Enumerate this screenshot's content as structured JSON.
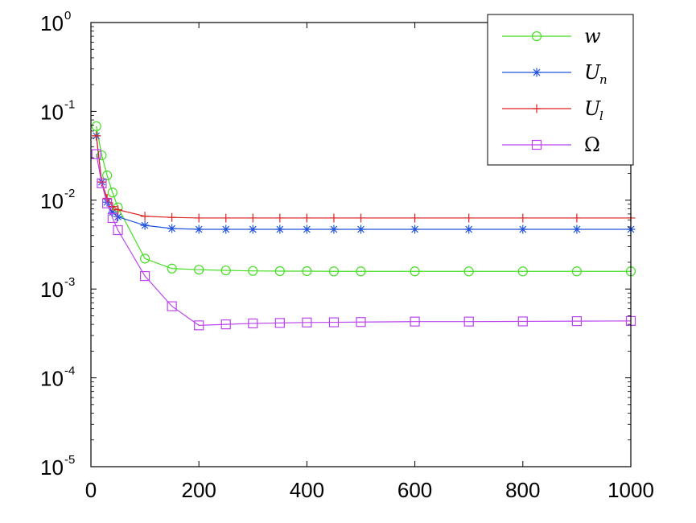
{
  "chart_data": {
    "type": "line",
    "x_scale": "linear",
    "y_scale": "log",
    "xlim": [
      0,
      1000
    ],
    "ylim": [
      1e-05,
      1
    ],
    "grid": false,
    "legend_position": "top-right",
    "x_ticks": [
      0,
      200,
      400,
      600,
      800,
      1000
    ],
    "x_tick_labels": [
      "0",
      "200",
      "400",
      "600",
      "800",
      "1000"
    ],
    "y_ticks": [
      1,
      0.1,
      0.01,
      0.001,
      0.0001,
      1e-05
    ],
    "y_tick_labels": [
      {
        "base": "10",
        "exp": "0"
      },
      {
        "base": "10",
        "exp": "-1"
      },
      {
        "base": "10",
        "exp": "-2"
      },
      {
        "base": "10",
        "exp": "-3"
      },
      {
        "base": "10",
        "exp": "-4"
      },
      {
        "base": "10",
        "exp": "-5"
      }
    ],
    "series": [
      {
        "name": "w",
        "legend_main": "w",
        "legend_sub": "",
        "color": "#44dd22",
        "marker": "circle",
        "x": [
          10,
          20,
          30,
          40,
          50,
          100,
          150,
          200,
          250,
          300,
          350,
          400,
          450,
          500,
          600,
          700,
          800,
          900,
          1000
        ],
        "y": [
          0.068,
          0.032,
          0.019,
          0.0122,
          0.0083,
          0.0022,
          0.0017,
          0.00165,
          0.00162,
          0.0016,
          0.00159,
          0.00159,
          0.00158,
          0.00158,
          0.00158,
          0.00158,
          0.00158,
          0.00158,
          0.00158
        ]
      },
      {
        "name": "Un",
        "legend_main": "U",
        "legend_sub": "n",
        "color": "#2255dd",
        "marker": "star",
        "x": [
          10,
          20,
          30,
          40,
          50,
          100,
          150,
          200,
          250,
          300,
          350,
          400,
          450,
          500,
          600,
          700,
          800,
          900,
          1000
        ],
        "y": [
          0.053,
          0.016,
          0.0095,
          0.0073,
          0.0065,
          0.0052,
          0.0048,
          0.0047,
          0.0047,
          0.0047,
          0.0047,
          0.0047,
          0.0047,
          0.0047,
          0.0047,
          0.0047,
          0.0047,
          0.0047,
          0.0047
        ]
      },
      {
        "name": "Ul",
        "legend_main": "U",
        "legend_sub": "l",
        "color": "#dd2222",
        "marker": "plus",
        "x": [
          10,
          20,
          30,
          40,
          50,
          100,
          150,
          200,
          250,
          300,
          350,
          400,
          450,
          500,
          600,
          700,
          800,
          900,
          1000
        ],
        "y": [
          0.053,
          0.016,
          0.0105,
          0.0085,
          0.0078,
          0.0066,
          0.0064,
          0.0063,
          0.0063,
          0.0063,
          0.0063,
          0.0063,
          0.0063,
          0.0063,
          0.0063,
          0.0063,
          0.0063,
          0.0063,
          0.0063
        ]
      },
      {
        "name": "Ω",
        "legend_main": "Ω",
        "legend_sub": "",
        "color": "#bb44ee",
        "marker": "square",
        "x": [
          10,
          20,
          30,
          40,
          50,
          100,
          150,
          200,
          250,
          300,
          350,
          400,
          450,
          500,
          600,
          700,
          800,
          900,
          1000
        ],
        "y": [
          0.033,
          0.0155,
          0.0092,
          0.0063,
          0.0046,
          0.0014,
          0.00064,
          0.00039,
          0.0004,
          0.00041,
          0.000415,
          0.00042,
          0.000422,
          0.000425,
          0.00043,
          0.00043,
          0.000432,
          0.000435,
          0.000437
        ]
      }
    ]
  }
}
